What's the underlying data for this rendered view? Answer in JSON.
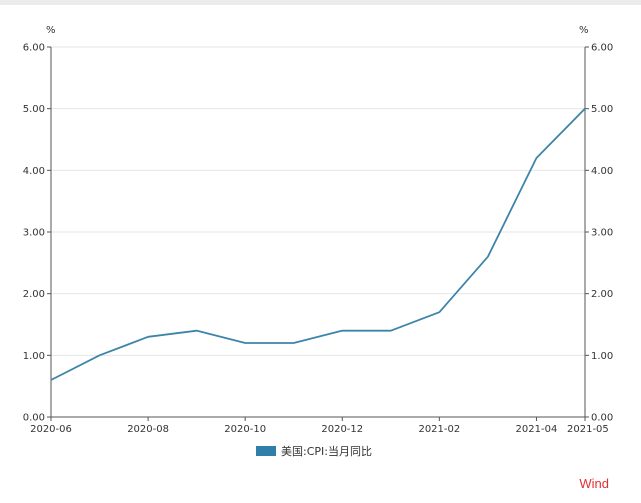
{
  "watermark": "Wind",
  "colors": {
    "line": "#3d85a8",
    "legend_swatch": "#2f7fa8",
    "grid": "#e6e6e6",
    "axis": "#555555",
    "watermark": "#e03030"
  },
  "chart_data": {
    "type": "line",
    "left_unit": "%",
    "right_unit": "%",
    "x": [
      "2020-06",
      "2020-07",
      "2020-08",
      "2020-09",
      "2020-10",
      "2020-11",
      "2020-12",
      "2021-01",
      "2021-02",
      "2021-03",
      "2021-04",
      "2021-05"
    ],
    "x_tick_labels": [
      "2020-06",
      "2020-08",
      "2020-10",
      "2020-12",
      "2021-02",
      "2021-04",
      "2021-05"
    ],
    "y_ticks": [
      "0.00",
      "1.00",
      "2.00",
      "3.00",
      "4.00",
      "5.00",
      "6.00"
    ],
    "ylim": [
      0,
      6
    ],
    "grid": true,
    "legend_position": "bottom",
    "series": [
      {
        "name": "美国:CPI:当月同比",
        "values": [
          0.6,
          1.0,
          1.3,
          1.4,
          1.2,
          1.2,
          1.4,
          1.4,
          1.7,
          2.6,
          4.2,
          5.0
        ]
      }
    ]
  }
}
